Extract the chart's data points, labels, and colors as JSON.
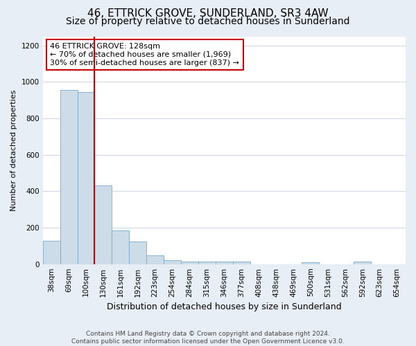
{
  "title": "46, ETTRICK GROVE, SUNDERLAND, SR3 4AW",
  "subtitle": "Size of property relative to detached houses in Sunderland",
  "xlabel": "Distribution of detached houses by size in Sunderland",
  "ylabel": "Number of detached properties",
  "footer_line1": "Contains HM Land Registry data © Crown copyright and database right 2024.",
  "footer_line2": "Contains public sector information licensed under the Open Government Licence v3.0.",
  "categories": [
    "38sqm",
    "69sqm",
    "100sqm",
    "130sqm",
    "161sqm",
    "192sqm",
    "223sqm",
    "254sqm",
    "284sqm",
    "315sqm",
    "346sqm",
    "377sqm",
    "408sqm",
    "438sqm",
    "469sqm",
    "500sqm",
    "531sqm",
    "562sqm",
    "592sqm",
    "623sqm",
    "654sqm"
  ],
  "values": [
    128,
    955,
    945,
    430,
    185,
    125,
    47,
    20,
    15,
    15,
    15,
    15,
    0,
    0,
    0,
    12,
    0,
    0,
    15,
    0,
    0
  ],
  "bar_color": "#ccdce8",
  "bar_edge_color": "#7aa8c8",
  "property_line_color": "#cc0000",
  "annotation_line1": "46 ETTRICK GROVE: 128sqm",
  "annotation_line2": "← 70% of detached houses are smaller (1,969)",
  "annotation_line3": "30% of semi-detached houses are larger (837) →",
  "annotation_box_facecolor": "#ffffff",
  "annotation_box_edgecolor": "#cc0000",
  "ylim": [
    0,
    1250
  ],
  "yticks": [
    0,
    200,
    400,
    600,
    800,
    1000,
    1200
  ],
  "fig_bg_color": "#e8eef5",
  "plot_bg_color": "#ffffff",
  "grid_color": "#d0d8e8",
  "title_fontsize": 11,
  "subtitle_fontsize": 10,
  "xlabel_fontsize": 9,
  "ylabel_fontsize": 8,
  "tick_fontsize": 7.5,
  "footer_fontsize": 6.5,
  "annotation_fontsize": 8
}
